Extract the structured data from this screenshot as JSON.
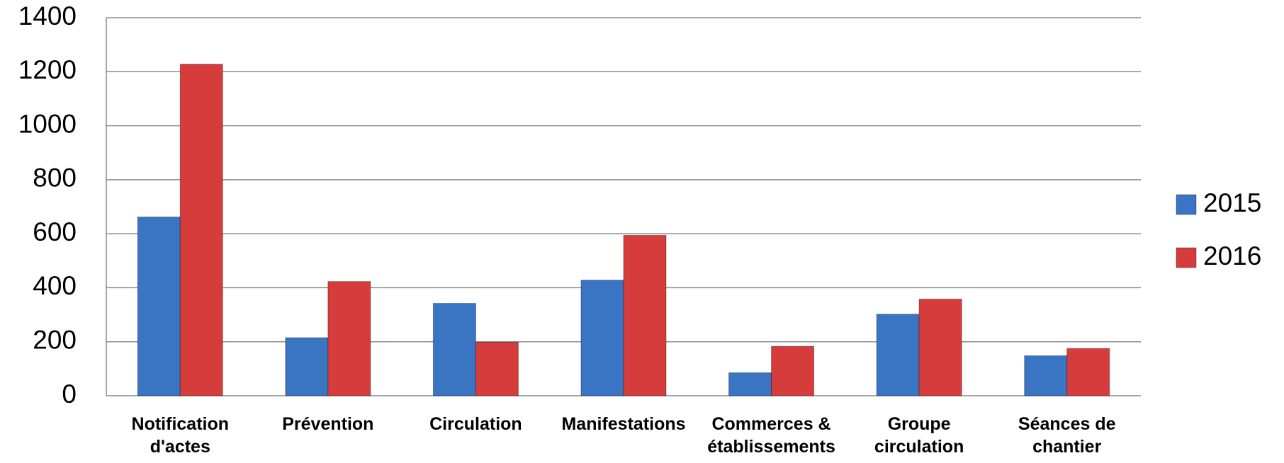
{
  "chart_data": {
    "type": "bar",
    "categories": [
      "Notification d'actes",
      "Prévention",
      "Circulation",
      "Manifestations",
      "Commerces & établissements",
      "Groupe circulation",
      "Séances de chantier"
    ],
    "series": [
      {
        "name": "2015",
        "color": "#3a75c4",
        "values": [
          662,
          215,
          342,
          428,
          85,
          302,
          148
        ]
      },
      {
        "name": "2016",
        "color": "#d63c3c",
        "values": [
          1228,
          423,
          198,
          594,
          183,
          358,
          175
        ]
      }
    ],
    "ylim": [
      0,
      1400
    ],
    "yticks": [
      0,
      200,
      400,
      600,
      800,
      1000,
      1200,
      1400
    ],
    "grid": true,
    "legend": "right"
  }
}
